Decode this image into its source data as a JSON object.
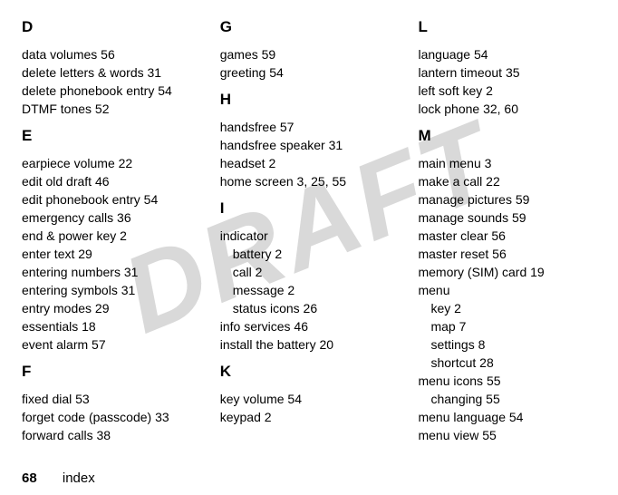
{
  "watermark": "DRAFT",
  "footer": {
    "page": "68",
    "label": "index"
  },
  "columns": [
    {
      "sections": [
        {
          "letter": "D",
          "entries": [
            {
              "text": "data volumes",
              "page": "56"
            },
            {
              "text": "delete letters & words",
              "page": "31"
            },
            {
              "text": "delete phonebook entry",
              "page": "54"
            },
            {
              "text": "DTMF tones",
              "page": "52"
            }
          ]
        },
        {
          "letter": "E",
          "entries": [
            {
              "text": "earpiece volume",
              "page": "22"
            },
            {
              "text": "edit old draft",
              "page": "46"
            },
            {
              "text": "edit phonebook entry",
              "page": "54"
            },
            {
              "text": "emergency calls",
              "page": "36"
            },
            {
              "text": "end & power key",
              "page": "2"
            },
            {
              "text": "enter text",
              "page": "29"
            },
            {
              "text": "entering numbers",
              "page": "31"
            },
            {
              "text": "entering symbols",
              "page": "31"
            },
            {
              "text": "entry modes",
              "page": "29"
            },
            {
              "text": "essentials",
              "page": "18"
            },
            {
              "text": "event alarm",
              "page": "57"
            }
          ]
        },
        {
          "letter": "F",
          "entries": [
            {
              "text": "fixed dial",
              "page": "53"
            },
            {
              "text": "forget code (passcode)",
              "page": "33"
            },
            {
              "text": "forward calls",
              "page": "38"
            }
          ]
        }
      ]
    },
    {
      "sections": [
        {
          "letter": "G",
          "entries": [
            {
              "text": "games",
              "page": "59"
            },
            {
              "text": "greeting",
              "page": "54"
            }
          ]
        },
        {
          "letter": "H",
          "entries": [
            {
              "text": "handsfree",
              "page": "57"
            },
            {
              "text": "handsfree speaker",
              "page": "31"
            },
            {
              "text": "headset",
              "page": "2"
            },
            {
              "text": "home screen",
              "page": "3, 25, 55"
            }
          ]
        },
        {
          "letter": "I",
          "entries": [
            {
              "text": "indicator",
              "page": "",
              "sub": [
                {
                  "text": "battery",
                  "page": "2"
                },
                {
                  "text": "call",
                  "page": "2"
                },
                {
                  "text": "message",
                  "page": "2"
                },
                {
                  "text": "status icons",
                  "page": "26"
                }
              ]
            },
            {
              "text": "info services",
              "page": "46"
            },
            {
              "text": "install the battery",
              "page": "20"
            }
          ]
        },
        {
          "letter": "K",
          "entries": [
            {
              "text": "key volume",
              "page": "54"
            },
            {
              "text": "keypad",
              "page": "2"
            }
          ]
        }
      ]
    },
    {
      "sections": [
        {
          "letter": "L",
          "entries": [
            {
              "text": "language",
              "page": "54"
            },
            {
              "text": "lantern timeout",
              "page": "35"
            },
            {
              "text": "left soft key",
              "page": "2"
            },
            {
              "text": "lock phone",
              "page": "32, 60"
            }
          ]
        },
        {
          "letter": "M",
          "entries": [
            {
              "text": "main menu",
              "page": "3"
            },
            {
              "text": "make a call",
              "page": "22"
            },
            {
              "text": "manage pictures",
              "page": "59"
            },
            {
              "text": "manage sounds",
              "page": "59"
            },
            {
              "text": "master clear",
              "page": "56"
            },
            {
              "text": "master reset",
              "page": "56"
            },
            {
              "text": "memory (SIM) card",
              "page": "19"
            },
            {
              "text": "menu",
              "page": "",
              "sub": [
                {
                  "text": "key",
                  "page": "2"
                },
                {
                  "text": "map",
                  "page": "7"
                },
                {
                  "text": "settings",
                  "page": "8"
                },
                {
                  "text": "shortcut",
                  "page": "28"
                }
              ]
            },
            {
              "text": "menu icons",
              "page": "55",
              "sub": [
                {
                  "text": "changing",
                  "page": "55"
                }
              ]
            },
            {
              "text": "menu language",
              "page": "54"
            },
            {
              "text": "menu view",
              "page": "55"
            }
          ]
        }
      ]
    }
  ]
}
